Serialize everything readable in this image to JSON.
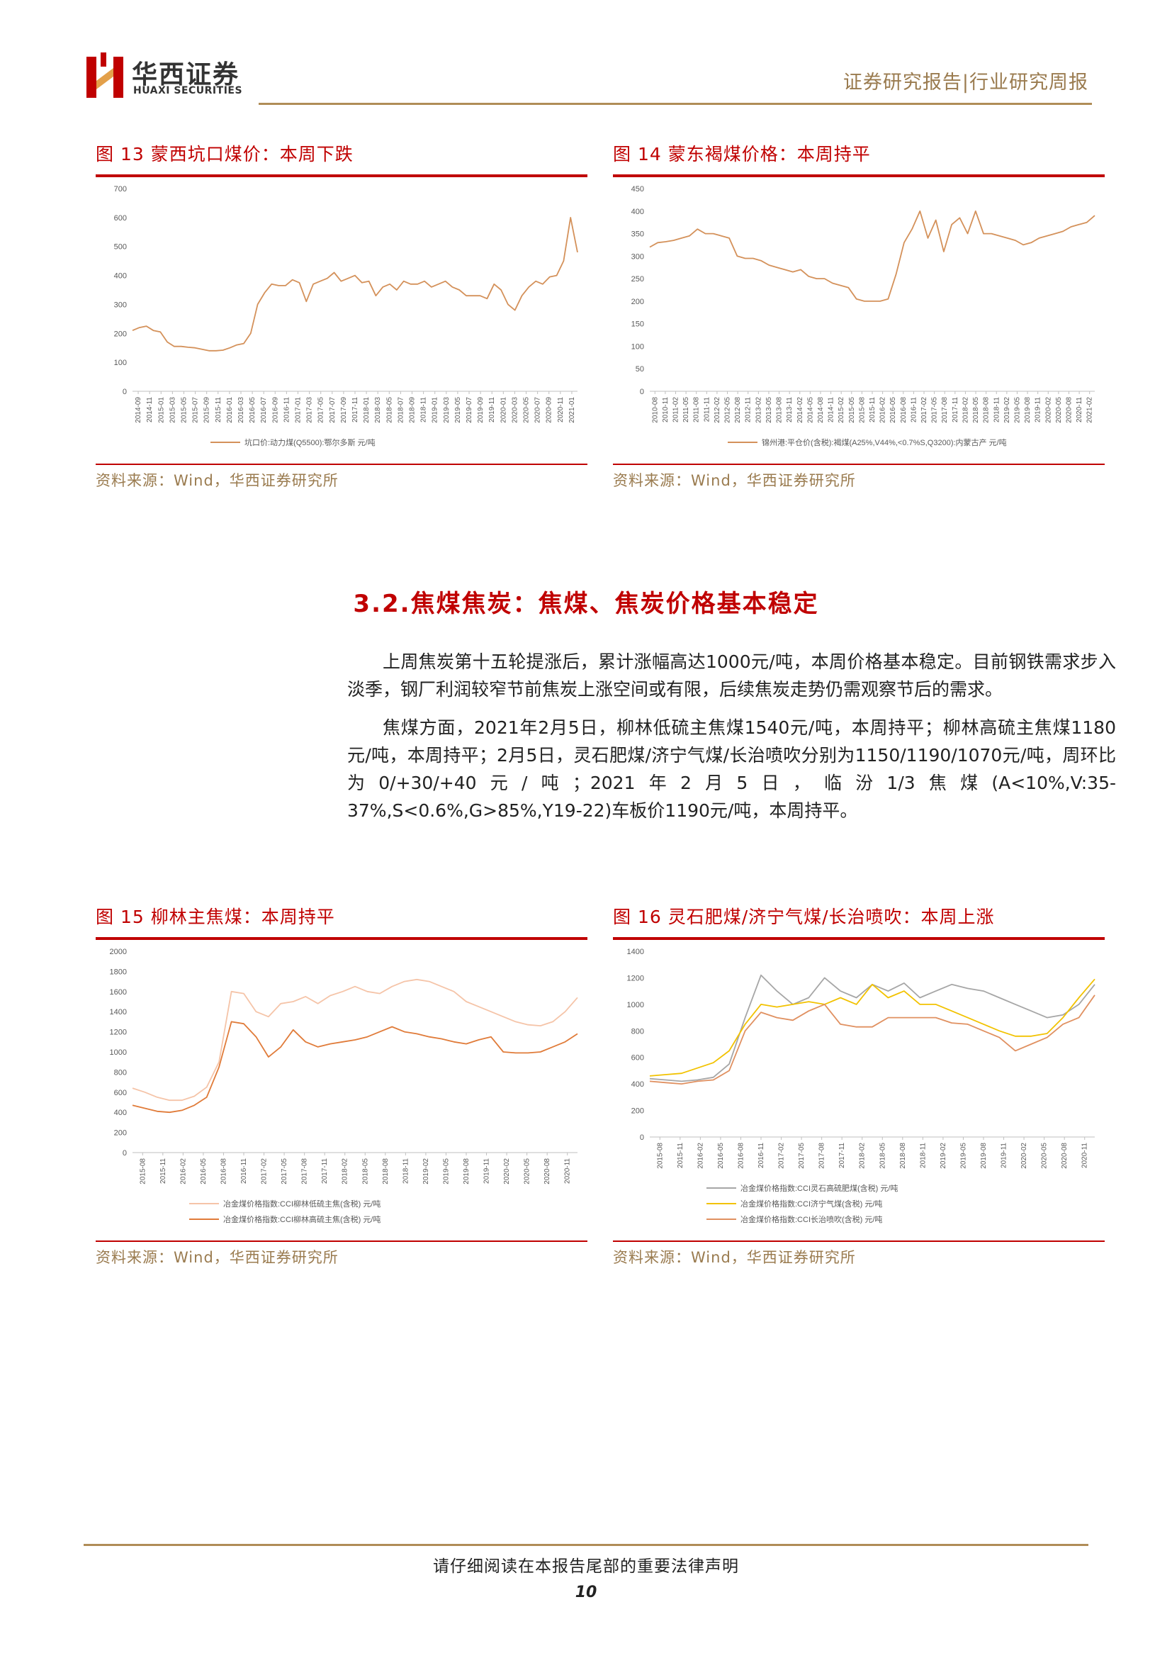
{
  "header": {
    "company_cn": "华西证券",
    "company_en": "HUAXI SECURITIES",
    "report_type": "证券研究报告|行业研究周报"
  },
  "figures": {
    "fig13": {
      "title": "图 13 蒙西坑口煤价：本周下跌",
      "source": "资料来源：Wind，华西证券研究所"
    },
    "fig14": {
      "title": "图 14 蒙东褐煤价格：本周持平",
      "source": "资料来源：Wind，华西证券研究所"
    },
    "fig15": {
      "title": "图 15 柳林主焦煤：本周持平",
      "source": "资料来源：Wind，华西证券研究所"
    },
    "fig16": {
      "title": "图 16 灵石肥煤/济宁气煤/长治喷吹：本周上涨",
      "source": "资料来源：Wind，华西证券研究所"
    }
  },
  "section": {
    "title": "3.2.焦煤焦炭：焦煤、焦炭价格基本稳定",
    "para1": "上周焦炭第十五轮提涨后，累计涨幅高达1000元/吨，本周价格基本稳定。目前钢铁需求步入淡季，钢厂利润较窄节前焦炭上涨空间或有限，后续焦炭走势仍需观察节后的需求。",
    "para2": "焦煤方面，2021年2月5日，柳林低硫主焦煤1540元/吨，本周持平；柳林高硫主焦煤1180元/吨，本周持平；2月5日，灵石肥煤/济宁气煤/长治喷吹分别为1150/1190/1070元/吨，周环比为0/+30/+40元/吨；2021年2月5日，临汾1/3焦煤(A<10%,V:35-37%,S<0.6%,G>85%,Y19-22)车板价1190元/吨，本周持平。"
  },
  "footer": {
    "notice": "请仔细阅读在本报告尾部的重要法律声明",
    "page": "10"
  },
  "chart_data": [
    {
      "id": "fig13",
      "type": "line",
      "ylim": [
        0,
        700
      ],
      "yticks": [
        0,
        100,
        200,
        300,
        400,
        500,
        600,
        700
      ],
      "x_ticks": [
        "2014-09",
        "2014-11",
        "2015-01",
        "2015-03",
        "2015-05",
        "2015-07",
        "2015-09",
        "2015-11",
        "2016-01",
        "2016-03",
        "2016-05",
        "2016-07",
        "2016-09",
        "2016-11",
        "2017-01",
        "2017-03",
        "2017-05",
        "2017-07",
        "2017-09",
        "2017-11",
        "2018-01",
        "2018-03",
        "2018-05",
        "2018-07",
        "2018-09",
        "2018-11",
        "2019-01",
        "2019-03",
        "2019-05",
        "2019-07",
        "2019-09",
        "2019-11",
        "2020-01",
        "2020-03",
        "2020-05",
        "2020-07",
        "2020-09",
        "2020-11",
        "2021-01"
      ],
      "series": [
        {
          "name": "坑口价:动力煤(Q5500):鄂尔多斯 元/吨",
          "color": "#d4915a",
          "values": [
            210,
            220,
            225,
            210,
            205,
            170,
            155,
            155,
            152,
            150,
            145,
            140,
            140,
            142,
            150,
            160,
            165,
            200,
            300,
            340,
            370,
            365,
            365,
            385,
            375,
            310,
            370,
            380,
            390,
            410,
            380,
            390,
            400,
            375,
            380,
            330,
            360,
            370,
            350,
            380,
            370,
            370,
            380,
            360,
            370,
            380,
            360,
            350,
            330,
            330,
            330,
            320,
            370,
            350,
            300,
            280,
            330,
            360,
            380,
            370,
            395,
            400,
            450,
            600,
            480
          ]
        }
      ]
    },
    {
      "id": "fig14",
      "type": "line",
      "ylim": [
        0,
        450
      ],
      "yticks": [
        0,
        50,
        100,
        150,
        200,
        250,
        300,
        350,
        400,
        450
      ],
      "x_ticks": [
        "2010-08",
        "2010-11",
        "2011-02",
        "2011-05",
        "2011-08",
        "2011-11",
        "2012-02",
        "2012-05",
        "2012-08",
        "2012-11",
        "2013-02",
        "2013-05",
        "2013-08",
        "2013-11",
        "2014-02",
        "2014-05",
        "2014-08",
        "2014-11",
        "2015-02",
        "2015-05",
        "2015-08",
        "2015-11",
        "2016-02",
        "2016-05",
        "2016-08",
        "2016-11",
        "2017-02",
        "2017-05",
        "2017-08",
        "2017-11",
        "2018-02",
        "2018-05",
        "2018-08",
        "2018-11",
        "2019-02",
        "2019-05",
        "2019-08",
        "2019-11",
        "2020-02",
        "2020-05",
        "2020-08",
        "2020-11",
        "2021-02"
      ],
      "series": [
        {
          "name": "锦州港:平仓价(含税):褐煤(A25%,V44%,<0.7%S,Q3200):内蒙古产 元/吨",
          "color": "#d4915a",
          "values": [
            320,
            330,
            332,
            335,
            340,
            345,
            360,
            350,
            350,
            345,
            340,
            300,
            295,
            295,
            290,
            280,
            275,
            270,
            265,
            270,
            255,
            250,
            250,
            240,
            235,
            230,
            205,
            200,
            200,
            200,
            205,
            260,
            330,
            360,
            400,
            340,
            380,
            310,
            370,
            385,
            350,
            400,
            350,
            350,
            345,
            340,
            335,
            325,
            330,
            340,
            345,
            350,
            355,
            365,
            370,
            375,
            390
          ]
        }
      ]
    },
    {
      "id": "fig15",
      "type": "line",
      "ylim": [
        0,
        2000
      ],
      "yticks": [
        0,
        200,
        400,
        600,
        800,
        1000,
        1200,
        1400,
        1600,
        1800,
        2000
      ],
      "x_ticks": [
        "2015-08",
        "2015-11",
        "2016-02",
        "2016-05",
        "2016-08",
        "2016-11",
        "2017-02",
        "2017-05",
        "2017-08",
        "2017-11",
        "2018-02",
        "2018-05",
        "2018-08",
        "2018-11",
        "2019-02",
        "2019-05",
        "2019-08",
        "2019-11",
        "2020-02",
        "2020-05",
        "2020-08",
        "2020-11"
      ],
      "series": [
        {
          "name": "冶金煤价格指数:CCI柳林低硫主焦(含税) 元/吨",
          "color": "#f5c4a8",
          "values": [
            640,
            600,
            550,
            520,
            520,
            560,
            650,
            900,
            1600,
            1580,
            1400,
            1350,
            1480,
            1500,
            1550,
            1480,
            1560,
            1600,
            1650,
            1600,
            1580,
            1650,
            1700,
            1720,
            1700,
            1650,
            1600,
            1500,
            1450,
            1400,
            1350,
            1300,
            1270,
            1260,
            1300,
            1400,
            1540
          ]
        },
        {
          "name": "冶金煤价格指数:CCI柳林高硫主焦(含税) 元/吨",
          "color": "#e07b39",
          "values": [
            470,
            440,
            410,
            400,
            420,
            470,
            550,
            850,
            1300,
            1280,
            1150,
            950,
            1050,
            1220,
            1100,
            1050,
            1080,
            1100,
            1120,
            1150,
            1200,
            1250,
            1200,
            1180,
            1150,
            1130,
            1100,
            1080,
            1120,
            1150,
            1000,
            990,
            990,
            1000,
            1050,
            1100,
            1180
          ]
        }
      ]
    },
    {
      "id": "fig16",
      "type": "line",
      "ylim": [
        0,
        1400
      ],
      "yticks": [
        0,
        200,
        400,
        600,
        800,
        1000,
        1200,
        1400
      ],
      "x_ticks": [
        "2015-08",
        "2015-11",
        "2016-02",
        "2016-05",
        "2016-08",
        "2016-11",
        "2017-02",
        "2017-05",
        "2017-08",
        "2017-11",
        "2018-02",
        "2018-05",
        "2018-08",
        "2018-11",
        "2019-02",
        "2019-05",
        "2019-08",
        "2019-11",
        "2020-02",
        "2020-05",
        "2020-08",
        "2020-11"
      ],
      "series": [
        {
          "name": "冶金煤价格指数:CCI灵石高硫肥煤(含税) 元/吨",
          "color": "#a6a6a6",
          "values": [
            440,
            430,
            420,
            430,
            450,
            550,
            900,
            1220,
            1100,
            1000,
            1050,
            1200,
            1100,
            1050,
            1150,
            1100,
            1160,
            1050,
            1100,
            1150,
            1120,
            1100,
            1050,
            1000,
            950,
            900,
            920,
            1000,
            1150
          ]
        },
        {
          "name": "冶金煤价格指数:CCI济宁气煤(含税) 元/吨",
          "color": "#f2c200",
          "values": [
            460,
            470,
            480,
            520,
            560,
            650,
            850,
            1000,
            980,
            1000,
            1020,
            1000,
            1050,
            1000,
            1150,
            1050,
            1100,
            1000,
            1000,
            950,
            900,
            850,
            800,
            760,
            760,
            780,
            900,
            1050,
            1190
          ]
        },
        {
          "name": "冶金煤价格指数:CCI长治喷吹(含税) 元/吨",
          "color": "#e09060",
          "values": [
            420,
            410,
            400,
            420,
            430,
            500,
            800,
            940,
            900,
            880,
            950,
            1000,
            850,
            830,
            830,
            900,
            900,
            900,
            900,
            860,
            850,
            800,
            750,
            650,
            700,
            750,
            850,
            900,
            1070
          ]
        }
      ]
    }
  ]
}
